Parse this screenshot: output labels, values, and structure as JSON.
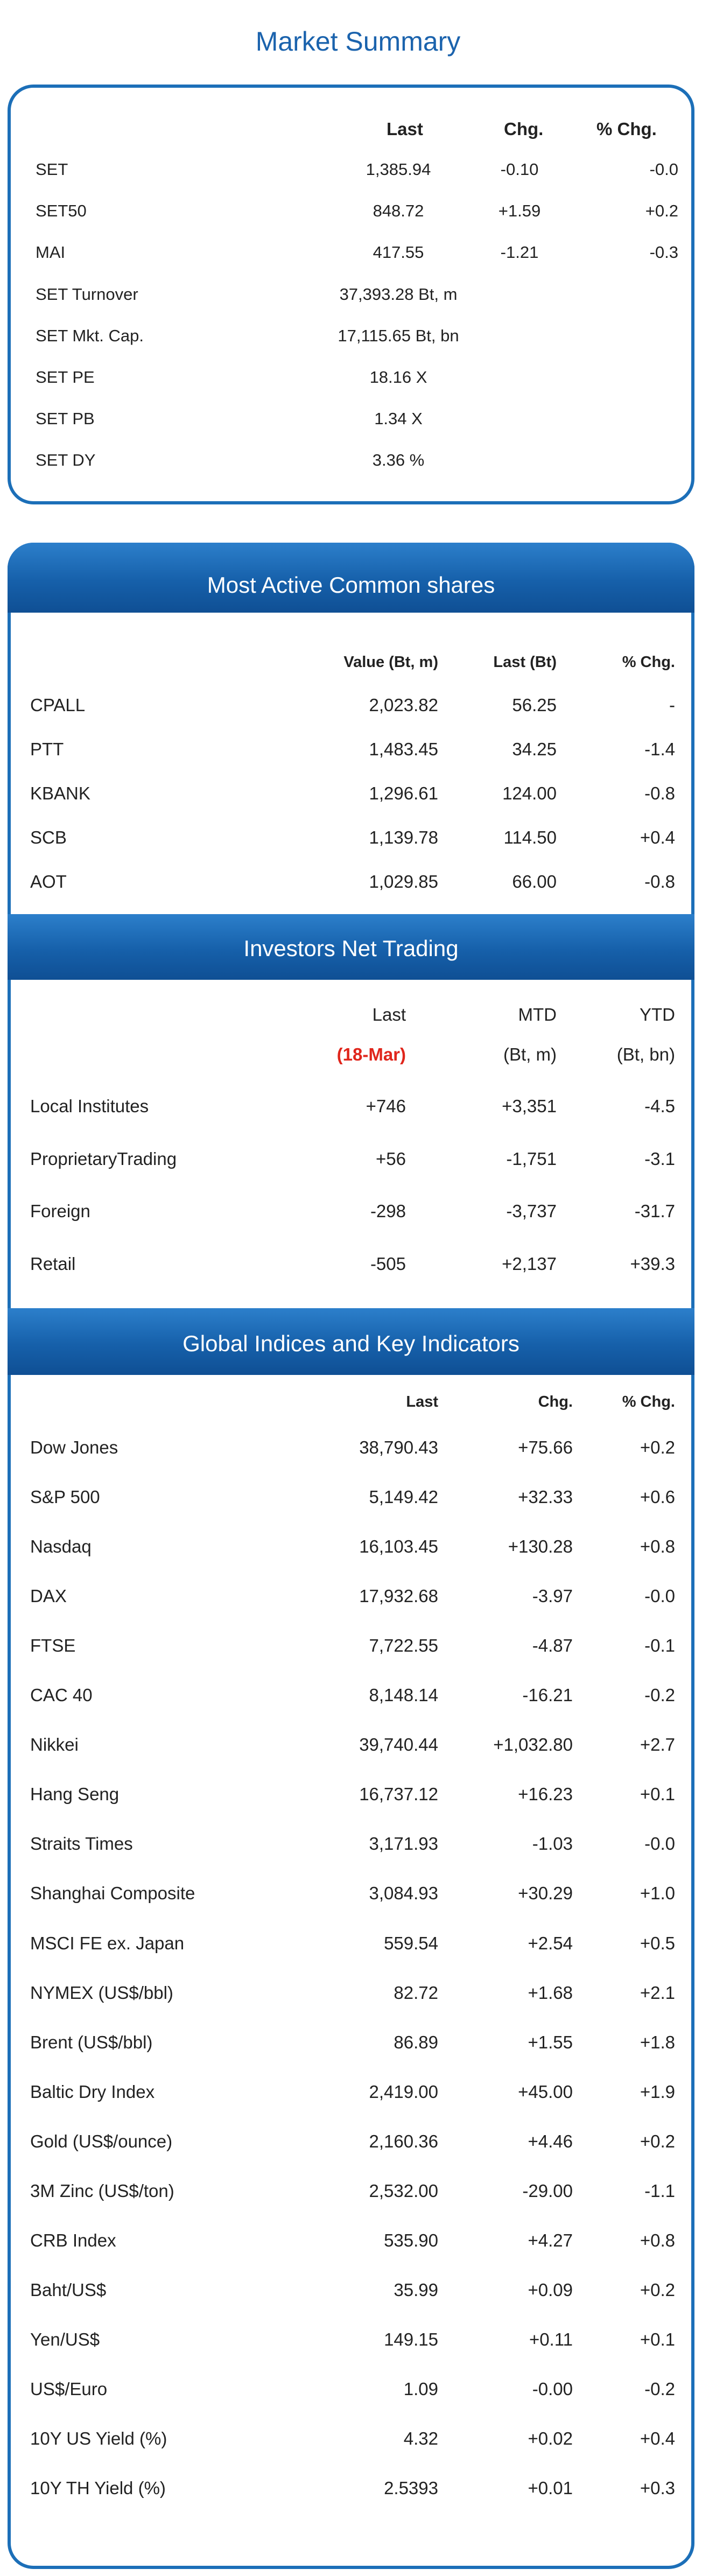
{
  "title": "Market Summary",
  "market_summary": {
    "headers": [
      "Last",
      "Chg.",
      "% Chg."
    ],
    "rows": [
      {
        "name": "SET",
        "last": "1,385.94",
        "chg": "-0.10",
        "pct": "-0.0"
      },
      {
        "name": "SET50",
        "last": "848.72",
        "chg": "+1.59",
        "pct": "+0.2"
      },
      {
        "name": "MAI",
        "last": "417.55",
        "chg": "-1.21",
        "pct": "-0.3"
      },
      {
        "name": "SET Turnover",
        "last": "37,393.28 Bt, m",
        "chg": "",
        "pct": ""
      },
      {
        "name": "SET Mkt. Cap.",
        "last": "17,115.65 Bt, bn",
        "chg": "",
        "pct": ""
      },
      {
        "name": "SET PE",
        "last": "18.16 X",
        "chg": "",
        "pct": ""
      },
      {
        "name": "SET PB",
        "last": "1.34 X",
        "chg": "",
        "pct": ""
      },
      {
        "name": "SET DY",
        "last": "3.36 %",
        "chg": "",
        "pct": ""
      }
    ]
  },
  "most_active": {
    "title": "Most Active Common shares",
    "headers": [
      "Value (Bt, m)",
      "Last (Bt)",
      "% Chg."
    ],
    "rows": [
      {
        "name": "CPALL",
        "value": "2,023.82",
        "last": "56.25",
        "pct": "-"
      },
      {
        "name": "PTT",
        "value": "1,483.45",
        "last": "34.25",
        "pct": "-1.4"
      },
      {
        "name": "KBANK",
        "value": "1,296.61",
        "last": "124.00",
        "pct": "-0.8"
      },
      {
        "name": "SCB",
        "value": "1,139.78",
        "last": "114.50",
        "pct": "+0.4"
      },
      {
        "name": "AOT",
        "value": "1,029.85",
        "last": "66.00",
        "pct": "-0.8"
      }
    ]
  },
  "investors": {
    "title": "Investors Net Trading",
    "headers": [
      "Last",
      "MTD",
      "YTD"
    ],
    "subheaders": [
      "(18-Mar)",
      "(Bt, m)",
      "(Bt, bn)"
    ],
    "rows": [
      {
        "name": "Local Institutes",
        "last": "+746",
        "mtd": "+3,351",
        "ytd": "-4.5"
      },
      {
        "name": "ProprietaryTrading",
        "last": "+56",
        "mtd": "-1,751",
        "ytd": "-3.1"
      },
      {
        "name": "Foreign",
        "last": "-298",
        "mtd": "-3,737",
        "ytd": "-31.7"
      },
      {
        "name": "Retail",
        "last": "-505",
        "mtd": "+2,137",
        "ytd": "+39.3"
      }
    ]
  },
  "global": {
    "title": "Global Indices and Key Indicators",
    "headers": [
      "Last",
      "Chg.",
      "% Chg."
    ],
    "rows": [
      {
        "name": "Dow Jones",
        "last": "38,790.43",
        "chg": "+75.66",
        "pct": "+0.2"
      },
      {
        "name": "S&P 500",
        "last": "5,149.42",
        "chg": "+32.33",
        "pct": "+0.6"
      },
      {
        "name": "Nasdaq",
        "last": "16,103.45",
        "chg": "+130.28",
        "pct": "+0.8"
      },
      {
        "name": "DAX",
        "last": "17,932.68",
        "chg": "-3.97",
        "pct": "-0.0"
      },
      {
        "name": "FTSE",
        "last": "7,722.55",
        "chg": "-4.87",
        "pct": "-0.1"
      },
      {
        "name": "CAC 40",
        "last": "8,148.14",
        "chg": "-16.21",
        "pct": "-0.2"
      },
      {
        "name": "Nikkei",
        "last": "39,740.44",
        "chg": "+1,032.80",
        "pct": "+2.7"
      },
      {
        "name": "Hang Seng",
        "last": "16,737.12",
        "chg": "+16.23",
        "pct": "+0.1"
      },
      {
        "name": "Straits Times",
        "last": "3,171.93",
        "chg": "-1.03",
        "pct": "-0.0"
      },
      {
        "name": "Shanghai Composite",
        "last": "3,084.93",
        "chg": "+30.29",
        "pct": "+1.0"
      },
      {
        "name": "MSCI FE ex. Japan",
        "last": "559.54",
        "chg": "+2.54",
        "pct": "+0.5"
      },
      {
        "name": "NYMEX (US$/bbl)",
        "last": "82.72",
        "chg": "+1.68",
        "pct": "+2.1"
      },
      {
        "name": "Brent (US$/bbl)",
        "last": "86.89",
        "chg": "+1.55",
        "pct": "+1.8"
      },
      {
        "name": "Baltic Dry Index",
        "last": "2,419.00",
        "chg": "+45.00",
        "pct": "+1.9"
      },
      {
        "name": "Gold (US$/ounce)",
        "last": "2,160.36",
        "chg": "+4.46",
        "pct": "+0.2"
      },
      {
        "name": "3M Zinc (US$/ton)",
        "last": "2,532.00",
        "chg": "-29.00",
        "pct": "-1.1"
      },
      {
        "name": "CRB Index",
        "last": "535.90",
        "chg": "+4.27",
        "pct": "+0.8"
      },
      {
        "name": "Baht/US$",
        "last": "35.99",
        "chg": "+0.09",
        "pct": "+0.2"
      },
      {
        "name": "Yen/US$",
        "last": "149.15",
        "chg": "+0.11",
        "pct": "+0.1"
      },
      {
        "name": "US$/Euro",
        "last": "1.09",
        "chg": "-0.00",
        "pct": "-0.2"
      },
      {
        "name": "10Y US Yield (%)",
        "last": "4.32",
        "chg": "+0.02",
        "pct": "+0.4"
      },
      {
        "name": "10Y TH Yield (%)",
        "last": "2.5393",
        "chg": "+0.01",
        "pct": "+0.3"
      }
    ]
  }
}
